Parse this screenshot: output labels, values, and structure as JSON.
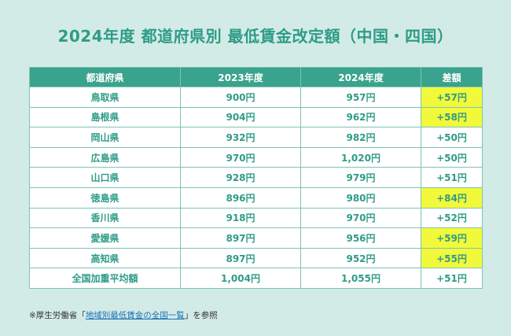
{
  "title": "2024年度 都道府県別 最低賃金改定額（中国・四国）",
  "table": {
    "headers": [
      "都道府県",
      "2023年度",
      "2024年度",
      "差額"
    ],
    "rows": [
      {
        "pref": "鳥取県",
        "y2023": "900円",
        "y2024": "957円",
        "diff": "+57円",
        "highlight": true
      },
      {
        "pref": "島根県",
        "y2023": "904円",
        "y2024": "962円",
        "diff": "+58円",
        "highlight": true
      },
      {
        "pref": "岡山県",
        "y2023": "932円",
        "y2024": "982円",
        "diff": "+50円",
        "highlight": false
      },
      {
        "pref": "広島県",
        "y2023": "970円",
        "y2024": "1,020円",
        "diff": "+50円",
        "highlight": false
      },
      {
        "pref": "山口県",
        "y2023": "928円",
        "y2024": "979円",
        "diff": "+51円",
        "highlight": false
      },
      {
        "pref": "徳島県",
        "y2023": "896円",
        "y2024": "980円",
        "diff": "+84円",
        "highlight": true
      },
      {
        "pref": "香川県",
        "y2023": "918円",
        "y2024": "970円",
        "diff": "+52円",
        "highlight": false
      },
      {
        "pref": "愛媛県",
        "y2023": "897円",
        "y2024": "956円",
        "diff": "+59円",
        "highlight": true
      },
      {
        "pref": "高知県",
        "y2023": "897円",
        "y2024": "952円",
        "diff": "+55円",
        "highlight": true
      },
      {
        "pref": "全国加重平均額",
        "y2023": "1,004円",
        "y2024": "1,055円",
        "diff": "+51円",
        "highlight": false
      }
    ]
  },
  "note": {
    "prefix": "※厚生労働省「",
    "link": "地域別最低賃金の全国一覧",
    "suffix": "」を参照"
  },
  "colors": {
    "background": "#d3ebe6",
    "accent": "#3aa38d",
    "text": "#2e9c87",
    "highlight": "#f2f93a"
  }
}
